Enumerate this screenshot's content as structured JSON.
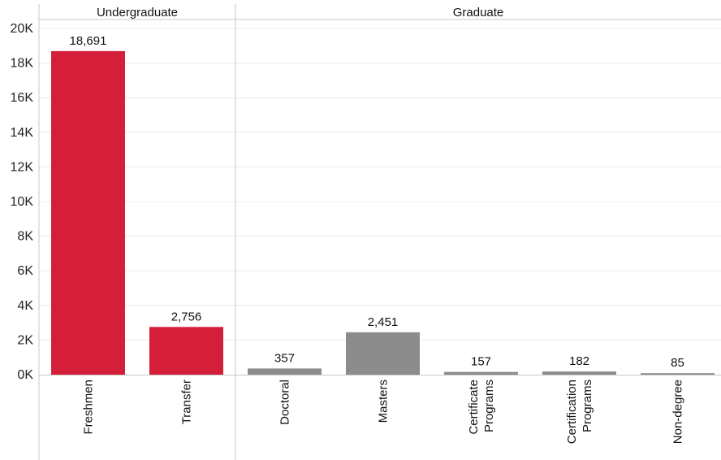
{
  "chart_data": {
    "type": "bar",
    "groups": [
      {
        "name": "Undergraduate",
        "categories": [
          {
            "label": [
              "Freshmen"
            ],
            "value": 18691,
            "value_label": "18,691"
          },
          {
            "label": [
              "Transfer"
            ],
            "value": 2756,
            "value_label": "2,756"
          }
        ]
      },
      {
        "name": "Graduate",
        "categories": [
          {
            "label": [
              "Doctoral"
            ],
            "value": 357,
            "value_label": "357"
          },
          {
            "label": [
              "Masters"
            ],
            "value": 2451,
            "value_label": "2,451"
          },
          {
            "label": [
              "Certificate",
              "Programs"
            ],
            "value": 157,
            "value_label": "157"
          },
          {
            "label": [
              "Certification",
              "Programs"
            ],
            "value": 182,
            "value_label": "182"
          },
          {
            "label": [
              "Non-degree"
            ],
            "value": 85,
            "value_label": "85"
          }
        ]
      }
    ],
    "ylim": [
      0,
      20000
    ],
    "yticks": [
      {
        "value": 0,
        "label": "0K"
      },
      {
        "value": 2000,
        "label": "2K"
      },
      {
        "value": 4000,
        "label": "4K"
      },
      {
        "value": 6000,
        "label": "6K"
      },
      {
        "value": 8000,
        "label": "8K"
      },
      {
        "value": 10000,
        "label": "10K"
      },
      {
        "value": 12000,
        "label": "12K"
      },
      {
        "value": 14000,
        "label": "14K"
      },
      {
        "value": 16000,
        "label": "16K"
      },
      {
        "value": 18000,
        "label": "18K"
      },
      {
        "value": 20000,
        "label": "20K"
      }
    ],
    "grid": true,
    "legend": "none",
    "colors": {
      "Undergraduate": "#d41e3a",
      "Graduate": "#8c8c8c"
    }
  }
}
